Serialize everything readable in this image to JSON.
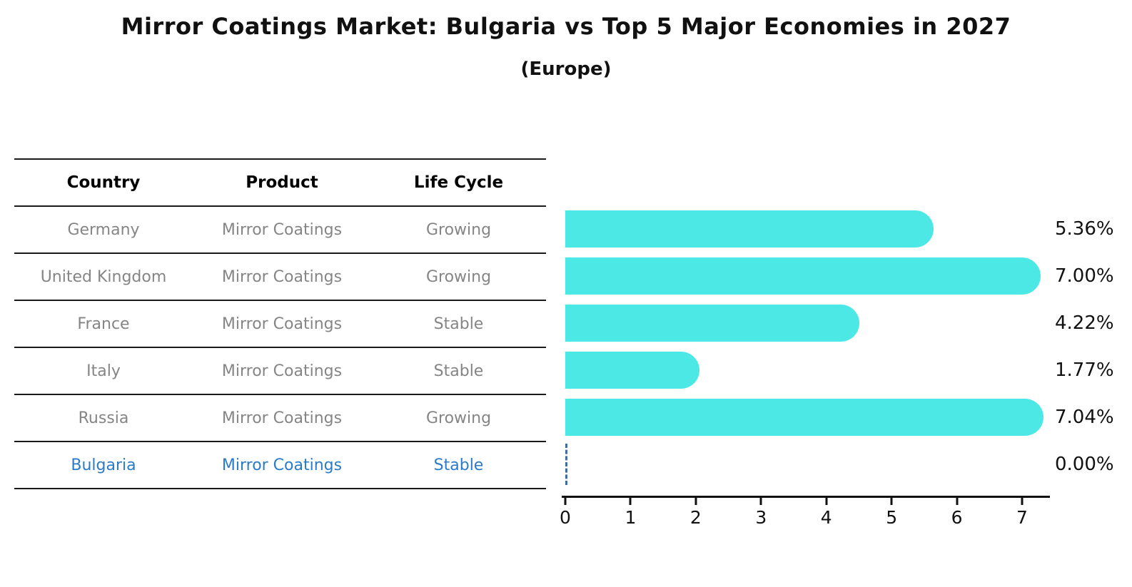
{
  "title": "Mirror Coatings Market: Bulgaria vs Top 5 Major Economies in 2027",
  "subtitle": "(Europe)",
  "table": {
    "headers": [
      "Country",
      "Product",
      "Life Cycle"
    ],
    "rows": [
      {
        "country": "Germany",
        "product": "Mirror Coatings",
        "life_cycle": "Growing",
        "value_label": "5.36%",
        "highlighted": false
      },
      {
        "country": "United Kingdom",
        "product": "Mirror Coatings",
        "life_cycle": "Growing",
        "value_label": "7.00%",
        "highlighted": false
      },
      {
        "country": "France",
        "product": "Mirror Coatings",
        "life_cycle": "Stable",
        "value_label": "4.22%",
        "highlighted": false
      },
      {
        "country": "Italy",
        "product": "Mirror Coatings",
        "life_cycle": "Stable",
        "value_label": "1.77%",
        "highlighted": false
      },
      {
        "country": "Russia",
        "product": "Mirror Coatings",
        "life_cycle": "Growing",
        "value_label": "7.04%",
        "highlighted": false
      },
      {
        "country": "Bulgaria",
        "product": "Mirror Coatings",
        "life_cycle": "Stable",
        "value_label": "0.00%",
        "highlighted": true
      }
    ]
  },
  "chart_data": {
    "type": "bar",
    "orientation": "horizontal",
    "title": "Mirror Coatings Market: Bulgaria vs Top 5 Major Economies in 2027 (Europe)",
    "categories": [
      "Germany",
      "United Kingdom",
      "France",
      "Italy",
      "Russia",
      "Bulgaria"
    ],
    "values": [
      5.36,
      7.0,
      4.22,
      1.77,
      7.04,
      0.0
    ],
    "value_labels": [
      "5.36%",
      "7.00%",
      "4.22%",
      "1.77%",
      "7.04%",
      "0.00%"
    ],
    "xlabel": "",
    "ylabel": "",
    "xlim": [
      0,
      7.5
    ],
    "xticks": [
      "0",
      "1",
      "2",
      "3",
      "4",
      "5",
      "6",
      "7"
    ],
    "grid": false,
    "legend": false,
    "bar_color": "#4be8e6",
    "highlight_color": "#2b7bc9",
    "zero_marker_color": "#3f6f9e",
    "zero_marker_style": "dashed"
  }
}
